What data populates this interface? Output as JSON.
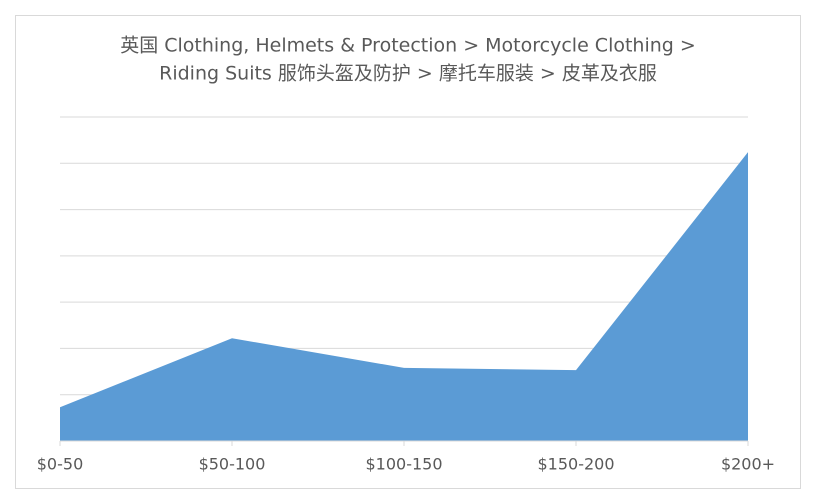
{
  "chart_data": {
    "type": "area",
    "title": [
      "英国  Clothing, Helmets & Protection > Motorcycle Clothing >",
      "Riding Suits 服饰头盔及防护 > 摩托车服装 > 皮革及衣服"
    ],
    "categories": [
      "$0-50",
      "$50-100",
      "$100-150",
      "$150-200",
      "$200+"
    ],
    "values": [
      0.73,
      2.22,
      1.58,
      1.53,
      6.24
    ],
    "color": "#5b9bd5",
    "ylim": [
      0,
      7
    ],
    "yticks": [
      0,
      1,
      2,
      3,
      4,
      5,
      6,
      7
    ],
    "grid": true
  }
}
